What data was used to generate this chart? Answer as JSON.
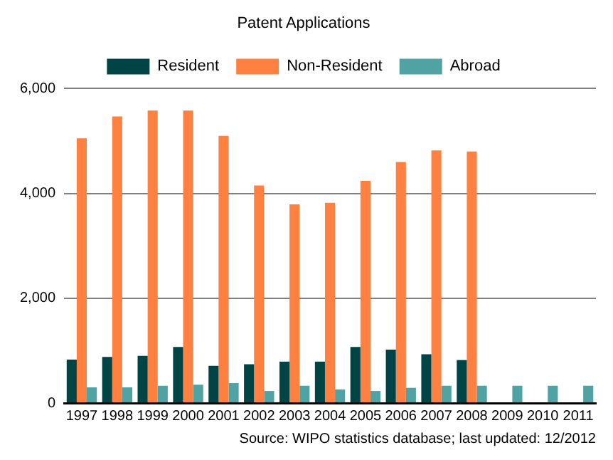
{
  "chart_data": {
    "type": "bar",
    "title": "Patent Applications",
    "categories": [
      "1997",
      "1998",
      "1999",
      "2000",
      "2001",
      "2002",
      "2003",
      "2004",
      "2005",
      "2006",
      "2007",
      "2008",
      "2009",
      "2010",
      "2011"
    ],
    "series": [
      {
        "name": "Resident",
        "color": "#004445",
        "values": [
          830,
          880,
          900,
          1070,
          710,
          740,
          790,
          790,
          1070,
          1020,
          930,
          820,
          null,
          null,
          null
        ]
      },
      {
        "name": "Non-Resident",
        "color": "#ff8142",
        "values": [
          5050,
          5470,
          5580,
          5580,
          5100,
          4150,
          3790,
          3820,
          4240,
          4600,
          4820,
          4800,
          null,
          null,
          null
        ]
      },
      {
        "name": "Abroad",
        "color": "#51a3a3",
        "values": [
          300,
          300,
          330,
          350,
          380,
          230,
          330,
          260,
          230,
          290,
          330,
          330,
          330,
          330,
          330
        ]
      }
    ],
    "ylim": [
      0,
      6000
    ],
    "yticks": [
      0,
      {
        "value": 2000,
        "label": "2,000"
      },
      {
        "value": 4000,
        "label": "4,000"
      },
      {
        "value": 6000,
        "label": "6,000"
      }
    ],
    "grid": "y",
    "legend": "top",
    "annotations": [
      "Source: WIPO statistics database; last updated: 12/2012"
    ]
  }
}
